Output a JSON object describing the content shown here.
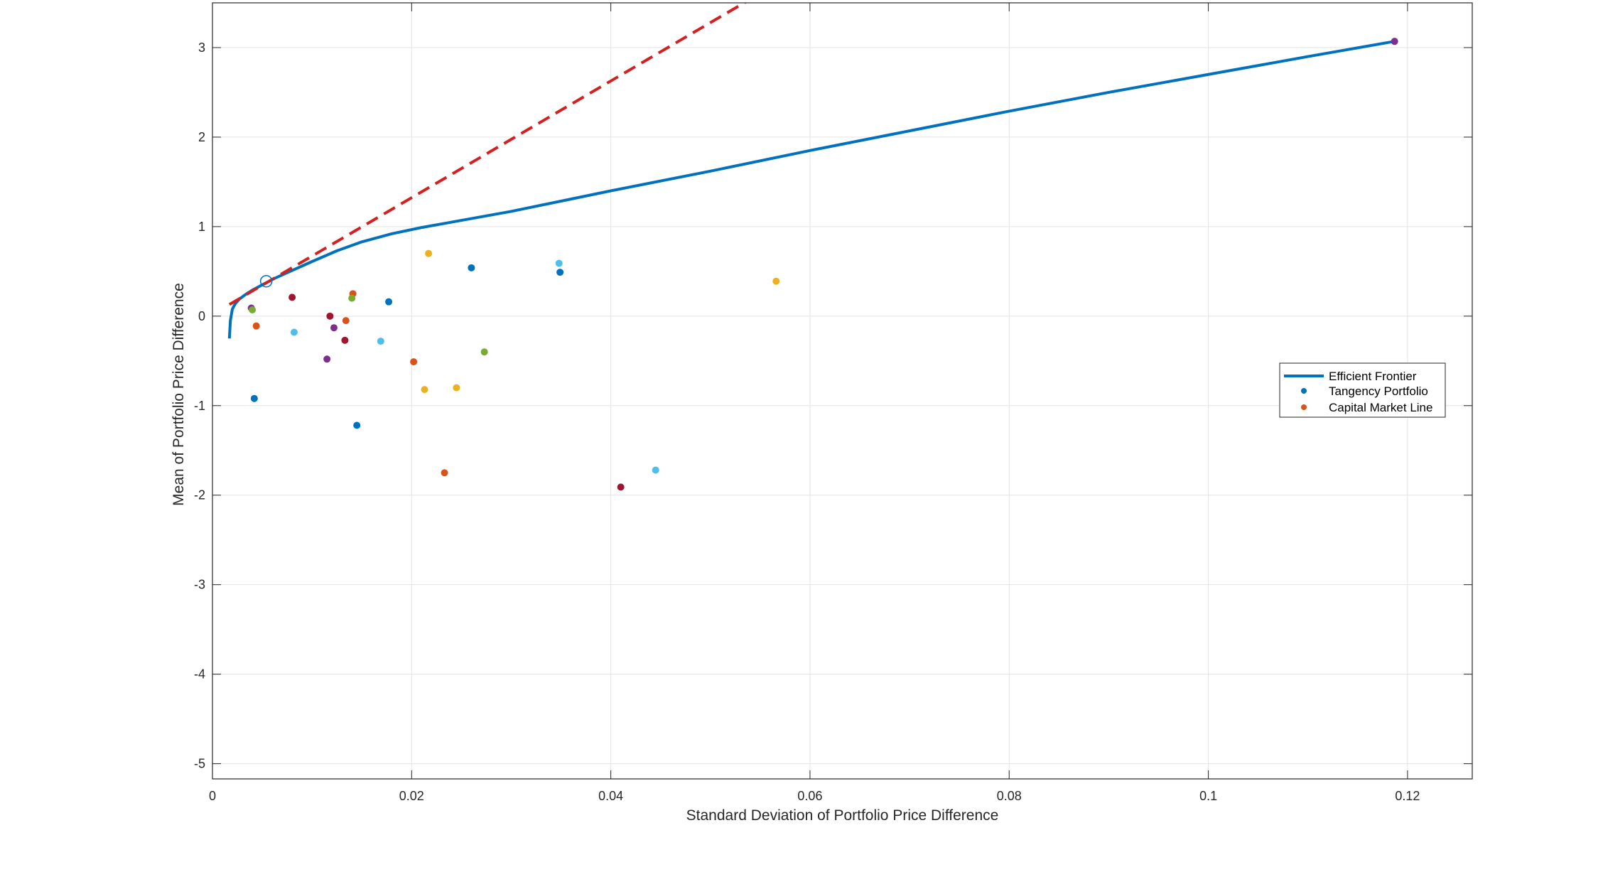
{
  "chart_data": {
    "type": "scatter",
    "xlabel": "Standard Deviation of Portfolio Price Difference",
    "ylabel": "Mean of Portfolio Price Difference",
    "xlim": [
      0,
      0.1265
    ],
    "ylim": [
      -5.17,
      3.5
    ],
    "xticks": [
      0,
      0.02,
      0.04,
      0.06,
      0.08,
      0.1,
      0.12
    ],
    "xtick_labels": [
      "0",
      "0.02",
      "0.04",
      "0.06",
      "0.08",
      "0.1",
      "0.12"
    ],
    "yticks": [
      -5,
      -4,
      -3,
      -2,
      -1,
      0,
      1,
      2,
      3
    ],
    "ytick_labels": [
      "-5",
      "-4",
      "-3",
      "-2",
      "-1",
      "0",
      "1",
      "2",
      "3"
    ],
    "grid": true,
    "legend_position": "right",
    "legend": [
      {
        "label": "Efficient Frontier",
        "type": "line",
        "color": "#0072BD"
      },
      {
        "label": "Tangency Portfolio",
        "type": "marker",
        "color": "#0072BD"
      },
      {
        "label": "Capital Market Line",
        "type": "marker",
        "color": "#D95319"
      }
    ],
    "efficient_frontier": {
      "color": "#0072BD",
      "x": [
        0.0017,
        0.0018,
        0.002,
        0.0023,
        0.0027,
        0.0033,
        0.004,
        0.005,
        0.0062,
        0.008,
        0.01,
        0.0125,
        0.015,
        0.018,
        0.021,
        0.025,
        0.03,
        0.04,
        0.05,
        0.06,
        0.07,
        0.08,
        0.09,
        0.1,
        0.11,
        0.1187
      ],
      "y": [
        -0.25,
        -0.05,
        0.08,
        0.14,
        0.19,
        0.24,
        0.29,
        0.35,
        0.42,
        0.51,
        0.61,
        0.73,
        0.83,
        0.92,
        0.99,
        1.07,
        1.17,
        1.4,
        1.62,
        1.85,
        2.07,
        2.29,
        2.5,
        2.7,
        2.9,
        3.07
      ]
    },
    "capital_market_line": {
      "color": "#D32020",
      "style": "dashed",
      "x": [
        0.0017,
        0.054
      ],
      "y": [
        0.13,
        3.54
      ]
    },
    "tangency_portfolio": {
      "x": 0.0054,
      "y": 0.39,
      "color": "#0072BD"
    },
    "assets": [
      {
        "x": 0.1187,
        "y": 3.07,
        "color": "#7E2F8E"
      },
      {
        "x": 0.0039,
        "y": 0.09,
        "color": "#7E2F8E"
      },
      {
        "x": 0.004,
        "y": 0.07,
        "color": "#77AC30"
      },
      {
        "x": 0.0044,
        "y": -0.11,
        "color": "#D95319"
      },
      {
        "x": 0.0042,
        "y": -0.92,
        "color": "#0072BD"
      },
      {
        "x": 0.008,
        "y": 0.21,
        "color": "#A2142F"
      },
      {
        "x": 0.0082,
        "y": -0.18,
        "color": "#4DBEEE"
      },
      {
        "x": 0.0118,
        "y": 0.0,
        "color": "#A2142F"
      },
      {
        "x": 0.0122,
        "y": -0.13,
        "color": "#7E2F8E"
      },
      {
        "x": 0.0115,
        "y": -0.48,
        "color": "#7E2F8E"
      },
      {
        "x": 0.0133,
        "y": -0.27,
        "color": "#A2142F"
      },
      {
        "x": 0.0134,
        "y": -0.05,
        "color": "#D95319"
      },
      {
        "x": 0.0141,
        "y": 0.25,
        "color": "#D95319"
      },
      {
        "x": 0.014,
        "y": 0.2,
        "color": "#77AC30"
      },
      {
        "x": 0.0145,
        "y": -1.22,
        "color": "#0072BD"
      },
      {
        "x": 0.0169,
        "y": -0.28,
        "color": "#4DBEEE"
      },
      {
        "x": 0.0177,
        "y": 0.16,
        "color": "#0072BD"
      },
      {
        "x": 0.0202,
        "y": -0.51,
        "color": "#D95319"
      },
      {
        "x": 0.0213,
        "y": -0.82,
        "color": "#EDB120"
      },
      {
        "x": 0.0217,
        "y": 0.7,
        "color": "#EDB120"
      },
      {
        "x": 0.0233,
        "y": -1.75,
        "color": "#D95319"
      },
      {
        "x": 0.0245,
        "y": -0.8,
        "color": "#EDB120"
      },
      {
        "x": 0.026,
        "y": 0.54,
        "color": "#0072BD"
      },
      {
        "x": 0.0273,
        "y": -0.4,
        "color": "#77AC30"
      },
      {
        "x": 0.0348,
        "y": 0.59,
        "color": "#4DBEEE"
      },
      {
        "x": 0.0349,
        "y": 0.49,
        "color": "#0072BD"
      },
      {
        "x": 0.041,
        "y": -1.91,
        "color": "#A2142F"
      },
      {
        "x": 0.0445,
        "y": -1.72,
        "color": "#4DBEEE"
      },
      {
        "x": 0.0566,
        "y": 0.39,
        "color": "#EDB120"
      }
    ]
  }
}
